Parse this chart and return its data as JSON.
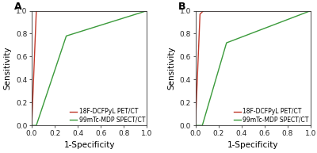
{
  "panel_A": {
    "red_curve": [
      [
        0.0,
        0.0
      ],
      [
        0.04,
        1.0
      ],
      [
        1.0,
        1.0
      ]
    ],
    "green_curve": [
      [
        0.0,
        0.0
      ],
      [
        0.04,
        0.0
      ],
      [
        0.3,
        0.78
      ],
      [
        1.0,
        1.0
      ]
    ]
  },
  "panel_B": {
    "red_curve": [
      [
        0.0,
        0.0
      ],
      [
        0.04,
        0.97
      ],
      [
        0.07,
        1.0
      ],
      [
        1.0,
        1.0
      ]
    ],
    "green_curve": [
      [
        0.0,
        0.0
      ],
      [
        0.06,
        0.0
      ],
      [
        0.27,
        0.72
      ],
      [
        1.0,
        1.0
      ]
    ]
  },
  "red_color": "#c0392b",
  "green_color": "#3a9a3a",
  "label_red": "18F-DCFPyL PET/CT",
  "label_green": "99mTc-MDP SPECT/CT",
  "xlabel": "1-Specificity",
  "ylabel": "Sensitivity",
  "label_A": "A",
  "label_B": "B",
  "bg_color": "#ffffff",
  "tick_fontsize": 6.5,
  "label_fontsize": 7.5,
  "legend_fontsize": 5.5,
  "panel_label_fontsize": 9
}
